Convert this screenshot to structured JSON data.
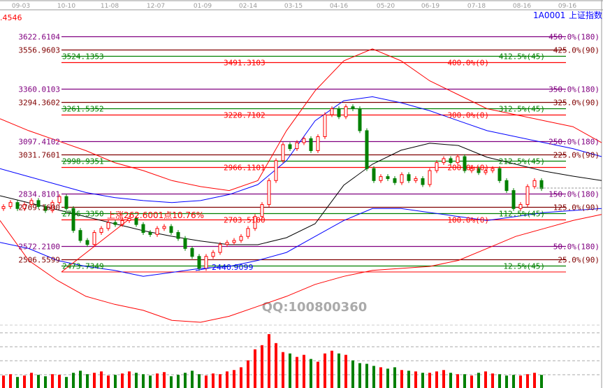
{
  "header": {
    "left_value": ".4546",
    "symbol": "1A0001",
    "name": "上证指数"
  },
  "colors": {
    "up": "#ff0000",
    "down": "#008000",
    "purple": "#800080",
    "darkred": "#800000",
    "green": "#008000",
    "red": "#ff0000",
    "ma_black": "#000000",
    "ma_blue": "#0000ff",
    "axis_text": "#999999",
    "watermark": "#aaaaaa"
  },
  "annotations": {
    "rise": "上涨262.6001点10.76%",
    "low": "2440.9099",
    "watermark": "QQ:100800360"
  },
  "chart_data": [
    {
      "type": "candlestick",
      "title": "",
      "x_tick_labels": [
        "09-03",
        "10-10",
        "11-08",
        "12-07",
        "01-09",
        "02-14",
        "03-15",
        "04-16",
        "05-20",
        "06-19",
        "07-18",
        "08-16",
        "09-16"
      ],
      "ylim": [
        2395,
        3700
      ],
      "grid": false,
      "closes": [
        2770,
        2790,
        2760,
        2780,
        2800,
        2770,
        2750,
        2790,
        2820,
        2760,
        2650,
        2600,
        2580,
        2640,
        2660,
        2690,
        2680,
        2700,
        2710,
        2680,
        2640,
        2630,
        2660,
        2670,
        2640,
        2610,
        2560,
        2520,
        2460,
        2520,
        2540,
        2580,
        2590,
        2600,
        2620,
        2660,
        2720,
        2780,
        2900,
        3000,
        3080,
        3060,
        3090,
        3110,
        3050,
        3120,
        3230,
        3260,
        3220,
        3270,
        3260,
        3150,
        2960,
        2900,
        2920,
        2910,
        2890,
        2930,
        2900,
        2910,
        2880,
        2950,
        2990,
        3010,
        2990,
        3020,
        2950,
        2960,
        2940,
        2950,
        2960,
        2900,
        2850,
        2760,
        2780,
        2870,
        2900,
        2860
      ],
      "fib_levels": [
        {
          "price": "3622.6104",
          "pct": "450.0%(180)",
          "color": "#800080"
        },
        {
          "price": "3556.9603",
          "pct": "425.0%(90)",
          "color": "#800000"
        },
        {
          "price": "3524.1353",
          "pct": "412.5%(45)",
          "color": "#008000"
        },
        {
          "price": "3491.3103",
          "pct": "400.0%(0)",
          "color": "#ff0000"
        },
        {
          "price": "3360.0103",
          "pct": "350.0%(180)",
          "color": "#800080"
        },
        {
          "price": "3294.3602",
          "pct": "325.0%(90)",
          "color": "#800000"
        },
        {
          "price": "3261.5352",
          "pct": "312.5%(45)",
          "color": "#008000"
        },
        {
          "price": "3228.7102",
          "pct": "300.0%(0)",
          "color": "#ff0000"
        },
        {
          "price": "3097.4102",
          "pct": "250.0%(180)",
          "color": "#800080"
        },
        {
          "price": "3031.7601",
          "pct": "225.0%(90)",
          "color": "#800000"
        },
        {
          "price": "2998.9351",
          "pct": "212.5%(45)",
          "color": "#008000"
        },
        {
          "price": "2966.1101",
          "pct": "200.0%(0)",
          "color": "#ff0000"
        },
        {
          "price": "2834.8101",
          "pct": "150.0%(180)",
          "color": "#800080"
        },
        {
          "price": "2769.1600",
          "pct": "125.0%(90)",
          "color": "#800000"
        },
        {
          "price": "2736.3350",
          "pct": "112.5%(45)",
          "color": "#008000"
        },
        {
          "price": "2703.5100",
          "pct": "100.0%(0)",
          "color": "#ff0000"
        },
        {
          "price": "2572.2100",
          "pct": "50.0%(180)",
          "color": "#800080"
        },
        {
          "price": "2506.5599",
          "pct": "25.0%(90)",
          "color": "#800000"
        },
        {
          "price": "2473.7349",
          "pct": "12.5%(45)",
          "color": "#008000"
        }
      ],
      "indicator_lines": [
        {
          "color": "#000000",
          "values": [
            2824,
            2789,
            2754,
            2719,
            2684,
            2649,
            2621,
            2597,
            2579,
            2579,
            2614,
            2684,
            2877,
            2982,
            3052,
            3087,
            3076,
            3017,
            2982,
            2947,
            2922,
            2900
          ]
        },
        {
          "color": "#0000ff",
          "values": [
            2960,
            2920,
            2880,
            2840,
            2815,
            2800,
            2790,
            2800,
            2830,
            2880,
            3000,
            3200,
            3300,
            3320,
            3290,
            3250,
            3200,
            3150,
            3120,
            3090,
            3060,
            3020
          ]
        },
        {
          "color": "#0000ff",
          "values": [
            2590,
            2560,
            2500,
            2470,
            2450,
            2420,
            2440,
            2460,
            2470,
            2500,
            2540,
            2620,
            2700,
            2760,
            2760,
            2740,
            2720,
            2700,
            2720,
            2740,
            2750,
            2760
          ]
        },
        {
          "color": "#ff0000",
          "values": [
            3210,
            3150,
            3100,
            3050,
            2990,
            2950,
            2900,
            2870,
            2850,
            2900,
            3150,
            3350,
            3500,
            3560,
            3500,
            3400,
            3330,
            3260,
            3230,
            3200,
            3170,
            3090
          ]
        },
        {
          "color": "#ff0000",
          "values": [
            2700,
            2500,
            2400,
            2320,
            2280,
            2250,
            2200,
            2190,
            2220,
            2270,
            2320,
            2380,
            2420,
            2450,
            2460,
            2470,
            2500,
            2560,
            2620,
            2660,
            2700,
            2730
          ]
        }
      ],
      "volume": [
        18,
        20,
        16,
        18,
        22,
        19,
        17,
        20,
        19,
        16,
        22,
        25,
        20,
        22,
        24,
        18,
        19,
        21,
        24,
        22,
        20,
        18,
        21,
        23,
        17,
        19,
        22,
        25,
        20,
        18,
        21,
        20,
        24,
        26,
        30,
        40,
        56,
        62,
        78,
        65,
        52,
        50,
        45,
        48,
        42,
        38,
        50,
        54,
        50,
        48,
        40,
        36,
        35,
        32,
        30,
        28,
        30,
        26,
        25,
        24,
        22,
        22,
        24,
        26,
        22,
        20,
        20,
        18,
        22,
        24,
        21,
        20,
        18,
        19,
        18,
        20,
        22,
        19
      ]
    }
  ]
}
